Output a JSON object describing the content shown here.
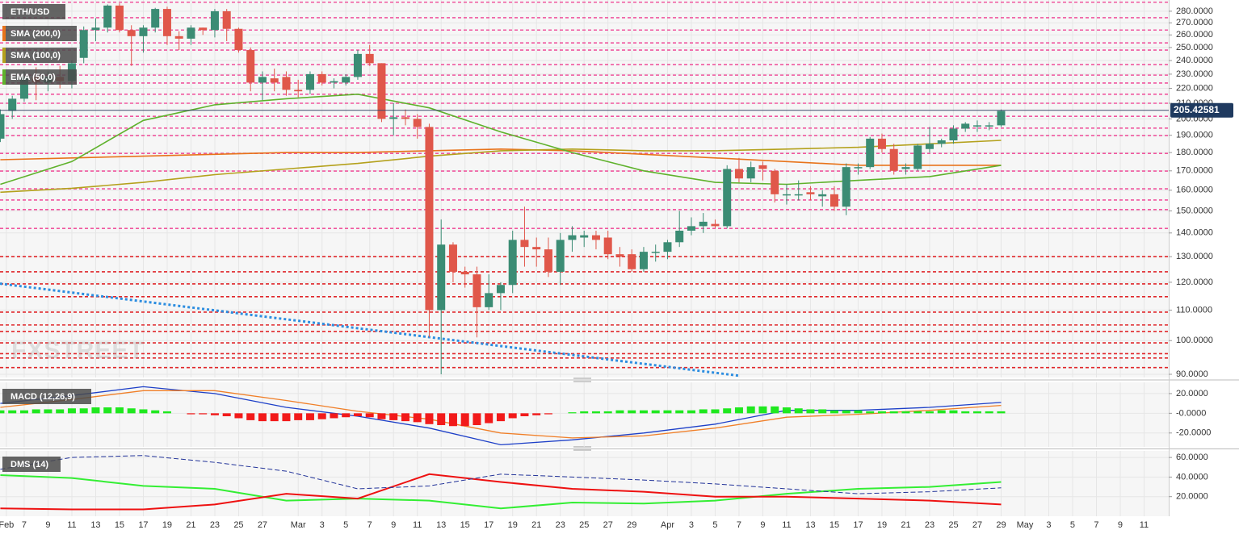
{
  "chart_data": [
    {
      "type": "candlestick",
      "symbol": "ETH/USD",
      "log_scale": true,
      "grid": true,
      "up_color": "#3b8c74",
      "down_color": "#e0574a",
      "xlim": [
        -0.03,
        98.07
      ],
      "ylim": [
        89.1,
        290
      ],
      "xticks": [
        {
          "value": 0.5,
          "label": "Feb"
        },
        {
          "value": 2,
          "label": "7"
        },
        {
          "value": 4,
          "label": "9"
        },
        {
          "value": 6,
          "label": "11"
        },
        {
          "value": 8,
          "label": "13"
        },
        {
          "value": 10,
          "label": "15"
        },
        {
          "value": 12,
          "label": "17"
        },
        {
          "value": 14,
          "label": "19"
        },
        {
          "value": 16,
          "label": "21"
        },
        {
          "value": 18,
          "label": "23"
        },
        {
          "value": 20,
          "label": "25"
        },
        {
          "value": 22,
          "label": "27"
        },
        {
          "value": 25,
          "label": "Mar"
        },
        {
          "value": 27,
          "label": "3"
        },
        {
          "value": 29,
          "label": "5"
        },
        {
          "value": 31,
          "label": "7"
        },
        {
          "value": 33,
          "label": "9"
        },
        {
          "value": 35,
          "label": "11"
        },
        {
          "value": 37,
          "label": "13"
        },
        {
          "value": 39,
          "label": "15"
        },
        {
          "value": 41,
          "label": "17"
        },
        {
          "value": 43,
          "label": "19"
        },
        {
          "value": 45,
          "label": "21"
        },
        {
          "value": 47,
          "label": "23"
        },
        {
          "value": 49,
          "label": "25"
        },
        {
          "value": 51,
          "label": "27"
        },
        {
          "value": 53,
          "label": "29"
        },
        {
          "value": 56,
          "label": "Apr"
        },
        {
          "value": 58,
          "label": "3"
        },
        {
          "value": 60,
          "label": "5"
        },
        {
          "value": 62,
          "label": "7"
        },
        {
          "value": 64,
          "label": "9"
        },
        {
          "value": 66,
          "label": "11"
        },
        {
          "value": 68,
          "label": "13"
        },
        {
          "value": 70,
          "label": "15"
        },
        {
          "value": 72,
          "label": "17"
        },
        {
          "value": 74,
          "label": "19"
        },
        {
          "value": 76,
          "label": "21"
        },
        {
          "value": 78,
          "label": "23"
        },
        {
          "value": 80,
          "label": "25"
        },
        {
          "value": 82,
          "label": "27"
        },
        {
          "value": 84,
          "label": "29"
        },
        {
          "value": 86,
          "label": "May"
        },
        {
          "value": 88,
          "label": "3"
        },
        {
          "value": 90,
          "label": "5"
        },
        {
          "value": 92,
          "label": "7"
        },
        {
          "value": 94,
          "label": "9"
        },
        {
          "value": 96,
          "label": "11"
        }
      ],
      "yticks": [
        {
          "value": 280,
          "label": "280.0000"
        },
        {
          "value": 270,
          "label": "270.0000"
        },
        {
          "value": 260,
          "label": "260.0000"
        },
        {
          "value": 250,
          "label": "250.0000"
        },
        {
          "value": 240,
          "label": "240.0000"
        },
        {
          "value": 230,
          "label": "230.0000"
        },
        {
          "value": 220,
          "label": "220.0000"
        },
        {
          "value": 210,
          "label": "210.0000"
        },
        {
          "value": 200,
          "label": "200.0000"
        },
        {
          "value": 190,
          "label": "190.0000"
        },
        {
          "value": 180,
          "label": "180.0000"
        },
        {
          "value": 170,
          "label": "170.0000"
        },
        {
          "value": 160,
          "label": "160.0000"
        },
        {
          "value": 150,
          "label": "150.0000"
        },
        {
          "value": 140,
          "label": "140.0000"
        },
        {
          "value": 130,
          "label": "130.0000"
        },
        {
          "value": 120,
          "label": "120.0000"
        },
        {
          "value": 110,
          "label": "110.0000"
        },
        {
          "value": 100,
          "label": "100.0000"
        },
        {
          "value": 90,
          "label": "90.0000"
        }
      ],
      "open": [
        188,
        205,
        213,
        228,
        224,
        228,
        225,
        242,
        264,
        266,
        285,
        264,
        259,
        266,
        282,
        259,
        257,
        266,
        264,
        280,
        265,
        248,
        224,
        227,
        228,
        219,
        219,
        230,
        224,
        224,
        228,
        245,
        238,
        200,
        201,
        200,
        195,
        110,
        135,
        124,
        123,
        111,
        116,
        119,
        137,
        134,
        133,
        124,
        137,
        138,
        139,
        138,
        131,
        131,
        125,
        132,
        132,
        136,
        141,
        143,
        144,
        143,
        171,
        166,
        173,
        170,
        158,
        158,
        159,
        157,
        158,
        152,
        172,
        172,
        188,
        182,
        171,
        171,
        182,
        185,
        187,
        194,
        196,
        196,
        196
      ],
      "high": [
        206,
        215,
        232,
        235,
        232,
        236,
        240,
        267,
        274,
        286,
        287,
        268,
        268,
        283,
        284,
        263,
        268,
        266,
        282,
        282,
        266,
        250,
        232,
        234,
        232,
        226,
        232,
        232,
        227,
        230,
        248,
        252,
        238,
        210,
        206,
        203,
        197,
        146,
        136,
        126,
        126,
        123,
        120,
        141,
        152,
        138,
        138,
        140,
        143,
        141,
        141,
        141,
        134,
        133,
        134,
        135,
        137,
        150,
        147,
        149,
        146,
        173,
        177,
        175,
        175,
        171,
        163,
        165,
        162,
        160,
        162,
        174,
        174,
        189,
        191,
        185,
        174,
        185,
        195,
        188,
        196,
        198,
        199,
        198,
        206
      ],
      "low": [
        186,
        200,
        211,
        212,
        218,
        220,
        220,
        238,
        255,
        262,
        262,
        236,
        246,
        262,
        252,
        248,
        252,
        260,
        258,
        255,
        246,
        218,
        212,
        218,
        215,
        214,
        216,
        222,
        220,
        222,
        226,
        236,
        198,
        190,
        196,
        188,
        101,
        90,
        120,
        118,
        101,
        110,
        110,
        116,
        126,
        126,
        122,
        119,
        132,
        134,
        133,
        129,
        126,
        124,
        124,
        128,
        129,
        134,
        139,
        140,
        142,
        142,
        164,
        164,
        165,
        154,
        153,
        155,
        155,
        152,
        150,
        148,
        168,
        171,
        180,
        168,
        168,
        170,
        180,
        183,
        185,
        192,
        192,
        193,
        195
      ],
      "close": [
        203,
        213,
        228,
        224,
        228,
        225,
        238,
        264,
        266,
        285,
        264,
        259,
        266,
        282,
        259,
        257,
        266,
        264,
        280,
        265,
        248,
        224,
        228,
        224,
        219,
        218,
        230,
        224,
        225,
        228,
        245,
        238,
        200,
        201,
        200,
        195,
        110,
        135,
        124,
        123,
        111,
        116,
        119,
        137,
        134,
        133,
        124,
        137,
        139,
        139,
        137,
        131,
        130,
        125,
        132,
        132,
        136,
        141,
        143,
        145,
        143,
        171,
        166,
        172,
        171,
        158,
        158,
        158,
        158,
        158,
        152,
        172,
        172,
        188,
        182,
        170,
        172,
        184,
        185,
        187,
        194,
        197,
        196,
        196,
        205
      ],
      "series": [
        {
          "name": "SMA (200,0)",
          "color": "#e8731a",
          "x": [
            0,
            6,
            12,
            18,
            24,
            30,
            36,
            42,
            48,
            54,
            60,
            66,
            72,
            78,
            84
          ],
          "values": [
            176,
            177,
            178,
            179,
            180,
            180,
            181,
            182,
            181,
            179,
            177,
            175,
            173,
            173,
            173
          ]
        },
        {
          "name": "SMA (100,0)",
          "color": "#b4a11c",
          "x": [
            0,
            6,
            12,
            18,
            24,
            30,
            36,
            42,
            48,
            54,
            60,
            66,
            72,
            78,
            84
          ],
          "values": [
            159,
            161,
            164,
            168,
            171,
            174,
            178,
            181,
            182,
            181,
            181,
            182,
            183,
            185,
            187
          ]
        },
        {
          "name": "EMA (50,0)",
          "color": "#5fb22c",
          "x": [
            0,
            6,
            12,
            18,
            24,
            30,
            36,
            42,
            48,
            54,
            60,
            66,
            72,
            78,
            84
          ],
          "values": [
            163,
            175,
            199,
            209,
            213,
            216,
            207,
            192,
            180,
            170,
            164,
            163,
            165,
            167,
            173
          ]
        }
      ],
      "trendline": {
        "color": "#2c8de0",
        "x": [
          -0.03,
          62
        ],
        "values": [
          119.5,
          89.6
        ]
      },
      "levels": [
        {
          "color": "#f0569e",
          "values": [
            288,
            274.4,
            264,
            253.6,
            248,
            237,
            229.3,
            223.7,
            216,
            210,
            201.6,
            194.3,
            189.8,
            179.5,
            169.9,
            160.7,
            155.2,
            150.6,
            142
          ]
        },
        {
          "color": "#e0262a",
          "values": [
            130,
            124,
            119.4,
            114.7,
            109.3,
            105,
            102.9,
            99.3,
            96,
            94.7,
            91.9
          ]
        }
      ],
      "last_price": 205.42581,
      "watermark": "FXSTREET"
    },
    {
      "type": "macd",
      "title": "MACD (12,26,9)",
      "ylim": [
        -34.1,
        31.4
      ],
      "yticks": [
        {
          "value": 20,
          "label": "20.0000"
        },
        {
          "value": 0,
          "label": "-0.0000"
        },
        {
          "value": -20,
          "label": "-20.0000"
        }
      ],
      "series": [
        {
          "color": "#1e40c8",
          "x": [
            0,
            6,
            12,
            18,
            24,
            30,
            36,
            42,
            48,
            54,
            60,
            66,
            72,
            78,
            84
          ],
          "values": [
            10,
            18,
            27,
            20,
            6,
            -3,
            -15,
            -32,
            -27,
            -20,
            -11,
            3,
            3,
            6,
            11
          ]
        },
        {
          "color": "#f07f28",
          "x": [
            0,
            6,
            12,
            18,
            24,
            30,
            36,
            42,
            48,
            54,
            60,
            66,
            72,
            78,
            84
          ],
          "values": [
            6,
            14,
            23,
            23,
            13,
            2,
            -6,
            -20,
            -25,
            -23,
            -15,
            -4,
            -1,
            3,
            8
          ]
        }
      ],
      "histogram": {
        "up_color": "#1fe81f",
        "down_color": "#f21a1a",
        "values": [
          3,
          3,
          3,
          4,
          4,
          4,
          5,
          5,
          6,
          6,
          6,
          5,
          4,
          3,
          2,
          0,
          -1,
          -1,
          -2,
          -3,
          -5,
          -7,
          -8,
          -8,
          -8,
          -7,
          -7,
          -6,
          -5,
          -4,
          -3,
          -4,
          -6,
          -7,
          -8,
          -9,
          -11,
          -12,
          -13,
          -13,
          -12,
          -10,
          -8,
          -5,
          -3,
          -2,
          -1,
          0,
          1,
          2,
          2,
          2,
          3,
          3,
          3,
          3,
          3,
          3,
          3,
          4,
          4,
          5,
          6,
          7,
          7,
          7,
          6,
          5,
          4,
          4,
          3,
          3,
          3,
          2,
          2,
          2,
          2,
          2,
          2,
          3,
          3,
          2,
          2,
          2,
          2
        ]
      }
    },
    {
      "type": "dms",
      "title": "DMS (14)",
      "ylim": [
        0,
        66.7
      ],
      "yticks": [
        {
          "value": 60,
          "label": "60.0000"
        },
        {
          "value": 40,
          "label": "40.0000"
        },
        {
          "value": 20,
          "label": "20.0000"
        }
      ],
      "series": [
        {
          "color": "#33ee33",
          "x": [
            0,
            6,
            12,
            18,
            24,
            30,
            36,
            42,
            48,
            54,
            60,
            66,
            72,
            78,
            84
          ],
          "values": [
            42,
            39,
            31,
            28,
            16,
            18,
            16,
            8,
            14,
            13,
            16,
            23,
            28,
            30,
            35
          ]
        },
        {
          "color": "#ee1111",
          "x": [
            0,
            6,
            12,
            18,
            24,
            30,
            36,
            42,
            48,
            54,
            60,
            66,
            72,
            78,
            84
          ],
          "values": [
            8,
            7,
            7,
            12,
            23,
            18,
            43,
            35,
            28,
            25,
            20,
            20,
            18,
            16,
            12
          ]
        },
        {
          "color": "#223399",
          "dashed": true,
          "x": [
            0,
            6,
            12,
            18,
            24,
            30,
            36,
            42,
            48,
            54,
            60,
            66,
            72,
            78,
            84
          ],
          "values": [
            48,
            60,
            62,
            55,
            46,
            28,
            31,
            43,
            40,
            37,
            33,
            28,
            23,
            25,
            29
          ]
        }
      ]
    }
  ]
}
